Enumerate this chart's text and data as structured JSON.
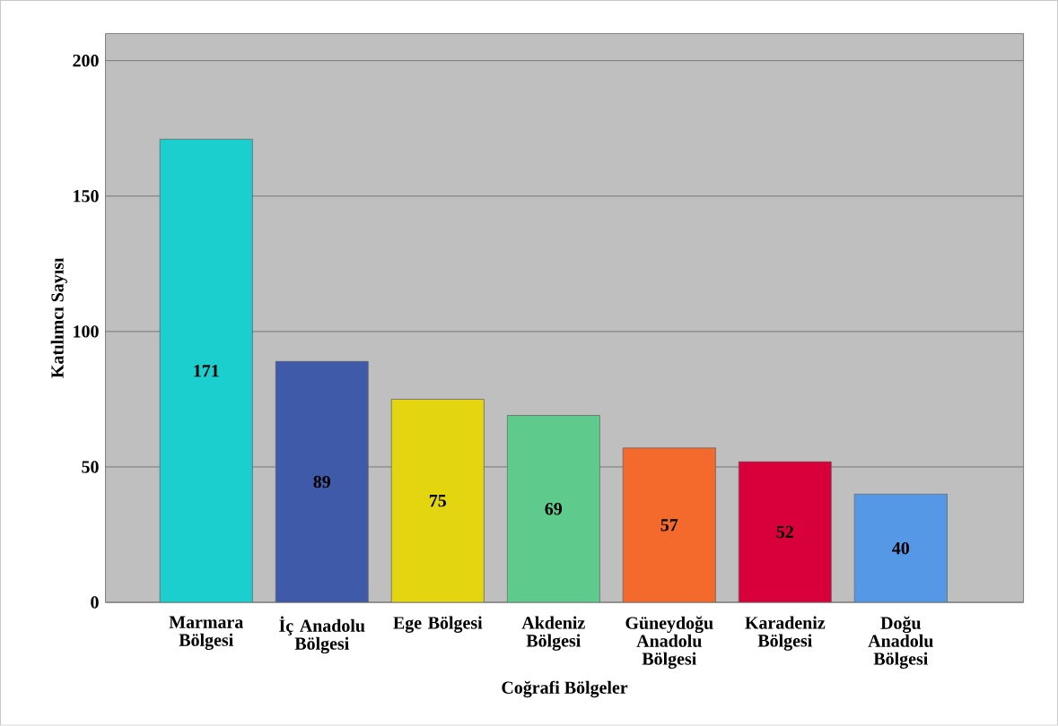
{
  "chart_data": {
    "type": "bar",
    "xlabel": "Coğrafi Bölgeler",
    "ylabel": "Katılımcı Sayısı",
    "categories": [
      "Marmara Bölgesi",
      "İç Anadolu Bölgesi",
      "Ege Bölgesi",
      "Akdeniz Bölgesi",
      "Güneydoğu Anadolu Bölgesi",
      "Karadeniz Bölgesi",
      "Doğu Anadolu Bölgesi"
    ],
    "values": [
      171,
      89,
      75,
      69,
      57,
      52,
      40
    ],
    "colors": [
      "#1ccfcf",
      "#3f5aa8",
      "#e3d510",
      "#5ecb8c",
      "#f46a2c",
      "#d8003a",
      "#5599e6"
    ],
    "ylim": [
      0,
      210
    ],
    "yticks": [
      0,
      50,
      100,
      150,
      200
    ],
    "grid": "y",
    "data_labels": true
  }
}
